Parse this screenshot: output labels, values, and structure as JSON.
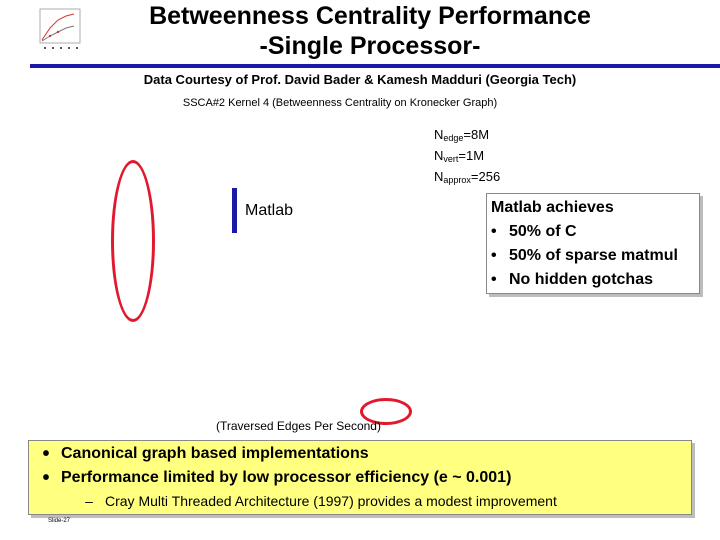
{
  "title": {
    "line1": "Betweenness Centrality Performance",
    "line2": "-Single Processor-"
  },
  "courtesy": "Data Courtesy of Prof. David Bader & Kamesh Madduri (Georgia Tech)",
  "subtitle": "SSCA#2 Kernel 4 (Betweenness Centrality on Kronecker Graph)",
  "params": [
    {
      "base": "N",
      "sub": "edge",
      "value": "=8M"
    },
    {
      "base": "N",
      "sub": "vert",
      "value": "=1M"
    },
    {
      "base": "N",
      "sub": "approx",
      "value": "=256"
    }
  ],
  "matlab_label": "Matlab",
  "callout": {
    "heading": "Matlab achieves",
    "bullet_glyph": "•",
    "items": [
      "50% of C",
      "50% of sparse matmul",
      "No hidden gotchas"
    ]
  },
  "x_axis_label": "(Traversed Edges Per Second)",
  "bottom": {
    "bullet_glyph": "•",
    "points": [
      "Canonical graph based implementations",
      "Performance limited by low processor efficiency (e ~ 0.001)"
    ],
    "dash_glyph": "–",
    "subpoint": "Cray Multi Threaded Architecture (1997) provides a modest improvement"
  },
  "slide_number": "Slide-27",
  "colors": {
    "accent_blue": "#1a1aa6",
    "highlight_red": "#e0192f",
    "bottom_box": "#ffff80"
  }
}
